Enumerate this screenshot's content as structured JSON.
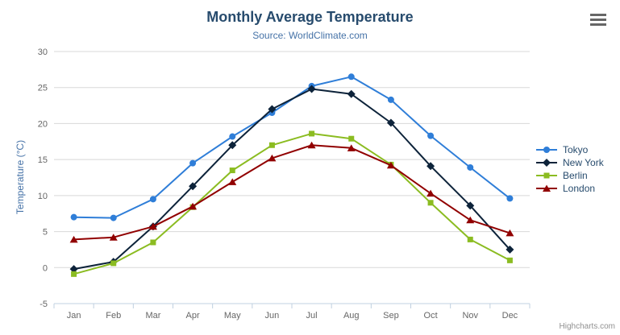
{
  "title": "Monthly Average Temperature",
  "subtitle": "Source: WorldClimate.com",
  "credits": "Highcharts.com",
  "export_menu": {
    "icon": "hamburger-icon"
  },
  "colors": {
    "title": "#274b6d",
    "subtitle": "#4572A7",
    "axis_labels": "#666666",
    "gridline": "#D8D8D8",
    "axis_line": "#C0D0E0",
    "legend_text": "#274b6d",
    "credits": "#909090"
  },
  "chart_data": {
    "type": "line",
    "title": "Monthly Average Temperature",
    "subtitle": "Source: WorldClimate.com",
    "categories": [
      "Jan",
      "Feb",
      "Mar",
      "Apr",
      "May",
      "Jun",
      "Jul",
      "Aug",
      "Sep",
      "Oct",
      "Nov",
      "Dec"
    ],
    "series": [
      {
        "name": "Tokyo",
        "color": "#2f7ed8",
        "marker": "circle",
        "values": [
          7.0,
          6.9,
          9.5,
          14.5,
          18.2,
          21.5,
          25.2,
          26.5,
          23.3,
          18.3,
          13.9,
          9.6
        ]
      },
      {
        "name": "New York",
        "color": "#0d233a",
        "marker": "diamond",
        "values": [
          -0.2,
          0.8,
          5.7,
          11.3,
          17.0,
          22.0,
          24.8,
          24.1,
          20.1,
          14.1,
          8.6,
          2.5
        ]
      },
      {
        "name": "Berlin",
        "color": "#8bbc21",
        "marker": "square",
        "values": [
          -0.9,
          0.6,
          3.5,
          8.4,
          13.5,
          17.0,
          18.6,
          17.9,
          14.3,
          9.0,
          3.9,
          1.0
        ]
      },
      {
        "name": "London",
        "color": "#910000",
        "marker": "triangle",
        "values": [
          3.9,
          4.2,
          5.7,
          8.5,
          11.9,
          15.2,
          17.0,
          16.6,
          14.2,
          10.3,
          6.6,
          4.8
        ]
      }
    ],
    "xlabel": "",
    "ylabel": "Temperature (°C)",
    "ylim": [
      -5,
      30
    ],
    "yticks": [
      -5,
      0,
      5,
      10,
      15,
      20,
      25,
      30
    ],
    "grid": true,
    "legend_position": "right"
  }
}
